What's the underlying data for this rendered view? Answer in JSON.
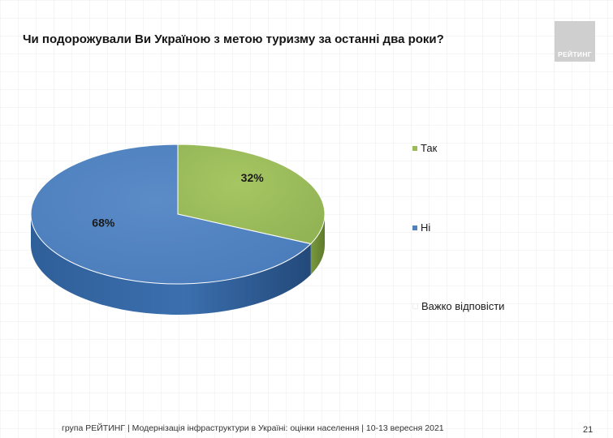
{
  "slide": {
    "title": "Чи подорожували Ви Україною з метою туризму за останні два роки?",
    "logo_text": "РЕЙТИНГ",
    "footer": "група РЕЙТИНГ | Модернізація інфраструктури в Україні: оцінки населення | 10-13 вересня 2021",
    "page_number": "21"
  },
  "chart_data": {
    "type": "pie",
    "title": "Чи подорожували Ви Україною з метою туризму за останні два роки?",
    "categories": [
      "Так",
      "Ні",
      "Важко відповісти"
    ],
    "values": [
      32,
      68,
      0
    ],
    "data_labels": [
      "32%",
      "68%",
      ""
    ],
    "colors": [
      "#9bbb59",
      "#4f81bd",
      "#ffffff"
    ],
    "legend_position": "right"
  }
}
